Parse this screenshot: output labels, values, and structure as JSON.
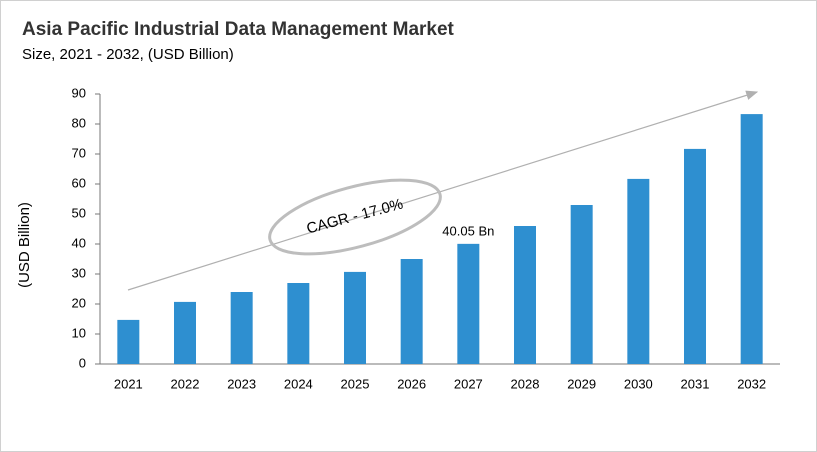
{
  "chart_data": {
    "type": "bar",
    "title": "Asia Pacific Industrial Data Management Market",
    "subtitle": "Size, 2021 - 2032, (USD Billion)",
    "y_label": "(USD Billion)",
    "annotation": "CAGR - 17.0%",
    "categories": [
      "2021",
      "2022",
      "2023",
      "2024",
      "2025",
      "2026",
      "2027",
      "2028",
      "2029",
      "2030",
      "2031",
      "2032"
    ],
    "values": [
      14.7,
      20.7,
      24,
      27,
      30.7,
      35,
      40.05,
      46,
      53,
      61.7,
      71.7,
      83.3
    ],
    "value_labels": [
      null,
      null,
      null,
      null,
      null,
      null,
      "40.05 Bn",
      null,
      null,
      null,
      null,
      null
    ],
    "color": "#2e8fd0",
    "ylim": [
      0,
      90
    ],
    "yticks": [
      0,
      10,
      20,
      30,
      40,
      50,
      60,
      70,
      80,
      90
    ],
    "grid": false
  }
}
